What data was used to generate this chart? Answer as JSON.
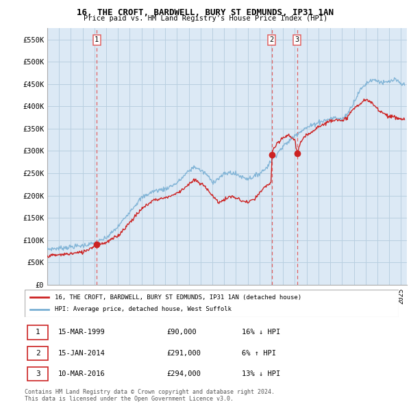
{
  "title": "16, THE CROFT, BARDWELL, BURY ST EDMUNDS, IP31 1AN",
  "subtitle": "Price paid vs. HM Land Registry's House Price Index (HPI)",
  "ylabel_ticks": [
    "£0",
    "£50K",
    "£100K",
    "£150K",
    "£200K",
    "£250K",
    "£300K",
    "£350K",
    "£400K",
    "£450K",
    "£500K",
    "£550K"
  ],
  "ytick_vals": [
    0,
    50000,
    100000,
    150000,
    200000,
    250000,
    300000,
    350000,
    400000,
    450000,
    500000,
    550000
  ],
  "xmin": 1995.0,
  "xmax": 2025.5,
  "ymin": 0,
  "ymax": 575000,
  "sale_dates": [
    1999.2,
    2014.04,
    2016.19
  ],
  "sale_prices": [
    90000,
    291000,
    294000
  ],
  "sale_labels": [
    "1",
    "2",
    "3"
  ],
  "vline_color": "#e06060",
  "vline_style": "--",
  "red_line_color": "#cc2222",
  "blue_line_color": "#7ab0d4",
  "background_color": "#dce9f5",
  "grid_color": "#b8cfe0",
  "legend_label_red": "16, THE CROFT, BARDWELL, BURY ST EDMUNDS, IP31 1AN (detached house)",
  "legend_label_blue": "HPI: Average price, detached house, West Suffolk",
  "table_rows": [
    {
      "num": "1",
      "date": "15-MAR-1999",
      "price": "£90,000",
      "hpi": "16% ↓ HPI"
    },
    {
      "num": "2",
      "date": "15-JAN-2014",
      "price": "£291,000",
      "hpi": "6% ↑ HPI"
    },
    {
      "num": "3",
      "date": "10-MAR-2016",
      "price": "£294,000",
      "hpi": "13% ↓ HPI"
    }
  ],
  "footnote": "Contains HM Land Registry data © Crown copyright and database right 2024.\nThis data is licensed under the Open Government Licence v3.0.",
  "hpi_key_points": [
    [
      1995.0,
      80000
    ],
    [
      1996.0,
      82000
    ],
    [
      1997.0,
      85000
    ],
    [
      1998.0,
      88000
    ],
    [
      1999.0,
      93000
    ],
    [
      2000.0,
      105000
    ],
    [
      2001.0,
      130000
    ],
    [
      2002.0,
      165000
    ],
    [
      2003.0,
      195000
    ],
    [
      2004.0,
      210000
    ],
    [
      2005.0,
      215000
    ],
    [
      2006.0,
      228000
    ],
    [
      2007.0,
      255000
    ],
    [
      2007.5,
      265000
    ],
    [
      2008.5,
      248000
    ],
    [
      2009.0,
      230000
    ],
    [
      2009.5,
      238000
    ],
    [
      2010.0,
      248000
    ],
    [
      2010.5,
      252000
    ],
    [
      2011.0,
      248000
    ],
    [
      2011.5,
      242000
    ],
    [
      2012.0,
      238000
    ],
    [
      2012.5,
      242000
    ],
    [
      2013.0,
      250000
    ],
    [
      2013.5,
      260000
    ],
    [
      2014.0,
      278000
    ],
    [
      2014.5,
      295000
    ],
    [
      2015.0,
      310000
    ],
    [
      2015.5,
      322000
    ],
    [
      2016.0,
      335000
    ],
    [
      2016.5,
      345000
    ],
    [
      2017.0,
      352000
    ],
    [
      2017.5,
      358000
    ],
    [
      2018.0,
      365000
    ],
    [
      2018.5,
      368000
    ],
    [
      2019.0,
      372000
    ],
    [
      2019.5,
      375000
    ],
    [
      2020.0,
      370000
    ],
    [
      2020.5,
      385000
    ],
    [
      2021.0,
      410000
    ],
    [
      2021.5,
      435000
    ],
    [
      2022.0,
      450000
    ],
    [
      2022.5,
      460000
    ],
    [
      2023.0,
      458000
    ],
    [
      2023.5,
      452000
    ],
    [
      2024.0,
      455000
    ],
    [
      2024.5,
      460000
    ],
    [
      2025.0,
      450000
    ],
    [
      2025.3,
      448000
    ]
  ],
  "red_key_points": [
    [
      1995.0,
      65000
    ],
    [
      1996.0,
      67000
    ],
    [
      1997.0,
      70000
    ],
    [
      1998.0,
      73000
    ],
    [
      1999.0,
      87000
    ],
    [
      1999.2,
      90000
    ],
    [
      1999.5,
      92000
    ],
    [
      2000.0,
      95000
    ],
    [
      2001.0,
      110000
    ],
    [
      2002.0,
      140000
    ],
    [
      2003.0,
      170000
    ],
    [
      2004.0,
      190000
    ],
    [
      2005.0,
      195000
    ],
    [
      2006.0,
      205000
    ],
    [
      2007.0,
      225000
    ],
    [
      2007.5,
      235000
    ],
    [
      2008.5,
      218000
    ],
    [
      2009.0,
      200000
    ],
    [
      2009.5,
      185000
    ],
    [
      2010.0,
      190000
    ],
    [
      2010.5,
      198000
    ],
    [
      2011.0,
      195000
    ],
    [
      2011.5,
      188000
    ],
    [
      2012.0,
      185000
    ],
    [
      2012.5,
      190000
    ],
    [
      2013.0,
      205000
    ],
    [
      2013.5,
      220000
    ],
    [
      2014.0,
      230000
    ],
    [
      2014.04,
      291000
    ],
    [
      2014.2,
      305000
    ],
    [
      2014.5,
      315000
    ],
    [
      2015.0,
      330000
    ],
    [
      2015.5,
      335000
    ],
    [
      2016.0,
      325000
    ],
    [
      2016.19,
      294000
    ],
    [
      2016.3,
      305000
    ],
    [
      2016.5,
      320000
    ],
    [
      2017.0,
      335000
    ],
    [
      2017.5,
      345000
    ],
    [
      2018.0,
      355000
    ],
    [
      2018.5,
      360000
    ],
    [
      2019.0,
      368000
    ],
    [
      2019.5,
      372000
    ],
    [
      2020.0,
      365000
    ],
    [
      2020.5,
      378000
    ],
    [
      2021.0,
      395000
    ],
    [
      2021.5,
      405000
    ],
    [
      2022.0,
      415000
    ],
    [
      2022.5,
      408000
    ],
    [
      2023.0,
      395000
    ],
    [
      2023.5,
      385000
    ],
    [
      2024.0,
      378000
    ],
    [
      2024.5,
      375000
    ],
    [
      2025.0,
      372000
    ],
    [
      2025.3,
      370000
    ]
  ]
}
